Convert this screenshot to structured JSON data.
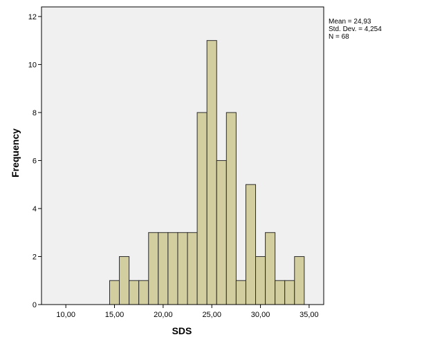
{
  "chart_data": {
    "type": "bar",
    "subtype": "histogram",
    "xlabel": "SDS",
    "ylabel": "Frequency",
    "xlim": [
      7.5,
      36.5
    ],
    "ylim": [
      0,
      12.4
    ],
    "x_ticks": [
      10,
      15,
      20,
      25,
      30,
      35
    ],
    "x_tick_labels": [
      "10,00",
      "15,00",
      "20,00",
      "25,00",
      "30,00",
      "35,00"
    ],
    "y_ticks": [
      0,
      2,
      4,
      6,
      8,
      10,
      12
    ],
    "y_tick_labels": [
      "0",
      "2",
      "4",
      "6",
      "8",
      "10",
      "12"
    ],
    "bin_width": 1,
    "bins": [
      {
        "start": 14.5,
        "end": 15.5,
        "count": 1
      },
      {
        "start": 15.5,
        "end": 16.5,
        "count": 2
      },
      {
        "start": 16.5,
        "end": 17.5,
        "count": 1
      },
      {
        "start": 17.5,
        "end": 18.5,
        "count": 1
      },
      {
        "start": 18.5,
        "end": 19.5,
        "count": 3
      },
      {
        "start": 19.5,
        "end": 20.5,
        "count": 3
      },
      {
        "start": 20.5,
        "end": 21.5,
        "count": 3
      },
      {
        "start": 21.5,
        "end": 22.5,
        "count": 3
      },
      {
        "start": 22.5,
        "end": 23.5,
        "count": 3
      },
      {
        "start": 23.5,
        "end": 24.5,
        "count": 8
      },
      {
        "start": 24.5,
        "end": 25.5,
        "count": 11
      },
      {
        "start": 25.5,
        "end": 26.5,
        "count": 6
      },
      {
        "start": 26.5,
        "end": 27.5,
        "count": 8
      },
      {
        "start": 27.5,
        "end": 28.5,
        "count": 1
      },
      {
        "start": 28.5,
        "end": 29.5,
        "count": 5
      },
      {
        "start": 29.5,
        "end": 30.5,
        "count": 2
      },
      {
        "start": 30.5,
        "end": 31.5,
        "count": 3
      },
      {
        "start": 31.5,
        "end": 32.5,
        "count": 1
      },
      {
        "start": 32.5,
        "end": 33.5,
        "count": 1
      },
      {
        "start": 33.5,
        "end": 34.5,
        "count": 2
      }
    ],
    "stats": {
      "mean": "Mean = 24,93",
      "std_dev": "Std. Dev. = 4,254",
      "n": "N = 68"
    },
    "grid": false,
    "colors": {
      "bar_fill": "#d3ce9f",
      "bar_stroke": "#2b2b2b",
      "plot_background": "#f0f0f0",
      "axis": "#000000"
    }
  }
}
